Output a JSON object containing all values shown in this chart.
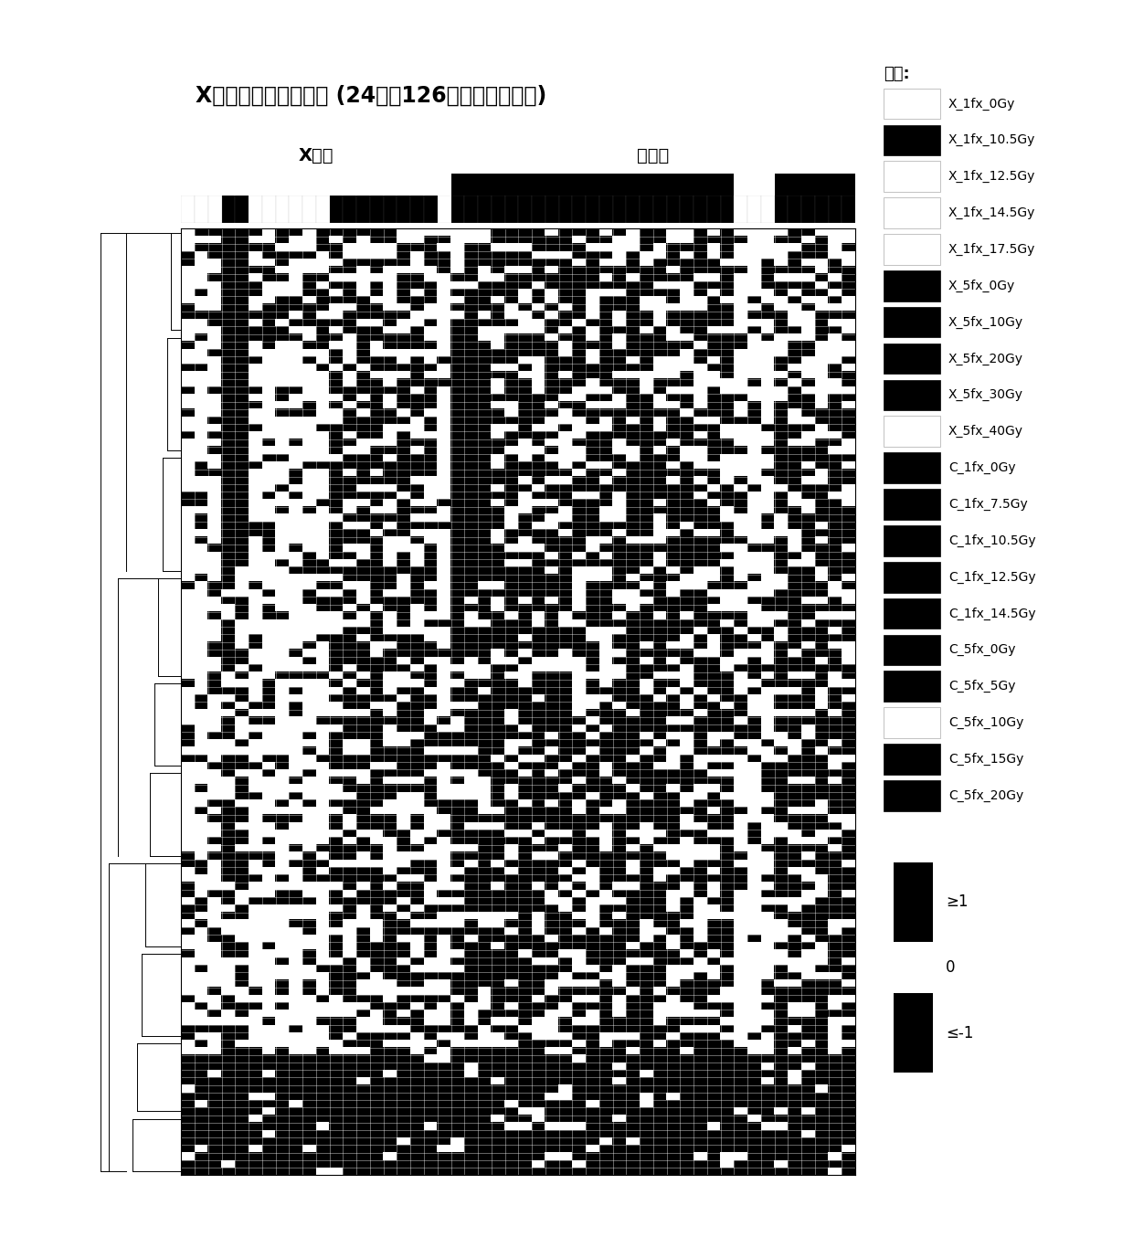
{
  "title": "X射线特异性敏感基因 (24周，126个基因表达上调)",
  "n_genes": 126,
  "n_samples": 50,
  "x_ray_label": "X射线",
  "heavy_ion_label": "重离子",
  "legend_title": "组别:",
  "legend_entries": [
    {
      "label": "X_1fx_0Gy",
      "color": "#ffffff"
    },
    {
      "label": "X_1fx_10.5Gy",
      "color": "#000000"
    },
    {
      "label": "X_1fx_12.5Gy",
      "color": "#ffffff"
    },
    {
      "label": "X_1fx_14.5Gy",
      "color": "#ffffff"
    },
    {
      "label": "X_1fx_17.5Gy",
      "color": "#ffffff"
    },
    {
      "label": "X_5fx_0Gy",
      "color": "#000000"
    },
    {
      "label": "X_5fx_10Gy",
      "color": "#000000"
    },
    {
      "label": "X_5fx_20Gy",
      "color": "#000000"
    },
    {
      "label": "X_5fx_30Gy",
      "color": "#000000"
    },
    {
      "label": "X_5fx_40Gy",
      "color": "#ffffff"
    },
    {
      "label": "C_1fx_0Gy",
      "color": "#000000"
    },
    {
      "label": "C_1fx_7.5Gy",
      "color": "#000000"
    },
    {
      "label": "C_1fx_10.5Gy",
      "color": "#000000"
    },
    {
      "label": "C_1fx_12.5Gy",
      "color": "#000000"
    },
    {
      "label": "C_1fx_14.5Gy",
      "color": "#000000"
    },
    {
      "label": "C_5fx_0Gy",
      "color": "#000000"
    },
    {
      "label": "C_5fx_5Gy",
      "color": "#000000"
    },
    {
      "label": "C_5fx_10Gy",
      "color": "#ffffff"
    },
    {
      "label": "C_5fx_15Gy",
      "color": "#000000"
    },
    {
      "label": "C_5fx_20Gy",
      "color": "#000000"
    }
  ],
  "colorbar_labels": [
    "≥1",
    "0",
    "≤-1"
  ],
  "n_xray_samples": 20,
  "n_heavy_samples": 30,
  "background_color": "#ffffff"
}
